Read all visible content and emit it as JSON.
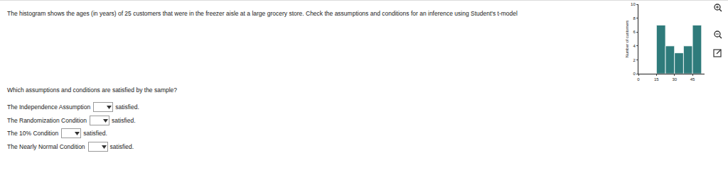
{
  "instruction": "The histogram shows the ages (in years) of 25 customers that were in the freezer aisle at a large grocery store. Check the assumptions and conditions for an inference using Student's t-model",
  "chart_data": {
    "type": "histogram",
    "y_label": "Number of customers",
    "bins": [
      15,
      22.5,
      30,
      37.5,
      45,
      52.5
    ],
    "values": [
      7,
      4,
      3,
      4,
      7
    ],
    "color": "#2f7b7b",
    "xlim": [
      0,
      55
    ],
    "xticks": [
      0,
      15,
      30,
      45
    ],
    "ylim": [
      0,
      10
    ],
    "yticks": [
      0,
      2,
      4,
      6,
      8,
      10
    ],
    "grid": false
  },
  "question": "Which assumptions and conditions are satisfied by the sample?",
  "rows": [
    {
      "label": "The Independence Assumption",
      "suffix": "satisfied."
    },
    {
      "label": "The Randomization Condition",
      "suffix": "satisfied."
    },
    {
      "label": "The 10% Condition",
      "suffix": "satisfied."
    },
    {
      "label": "The Nearly Normal Condition",
      "suffix": "satisfied."
    }
  ]
}
